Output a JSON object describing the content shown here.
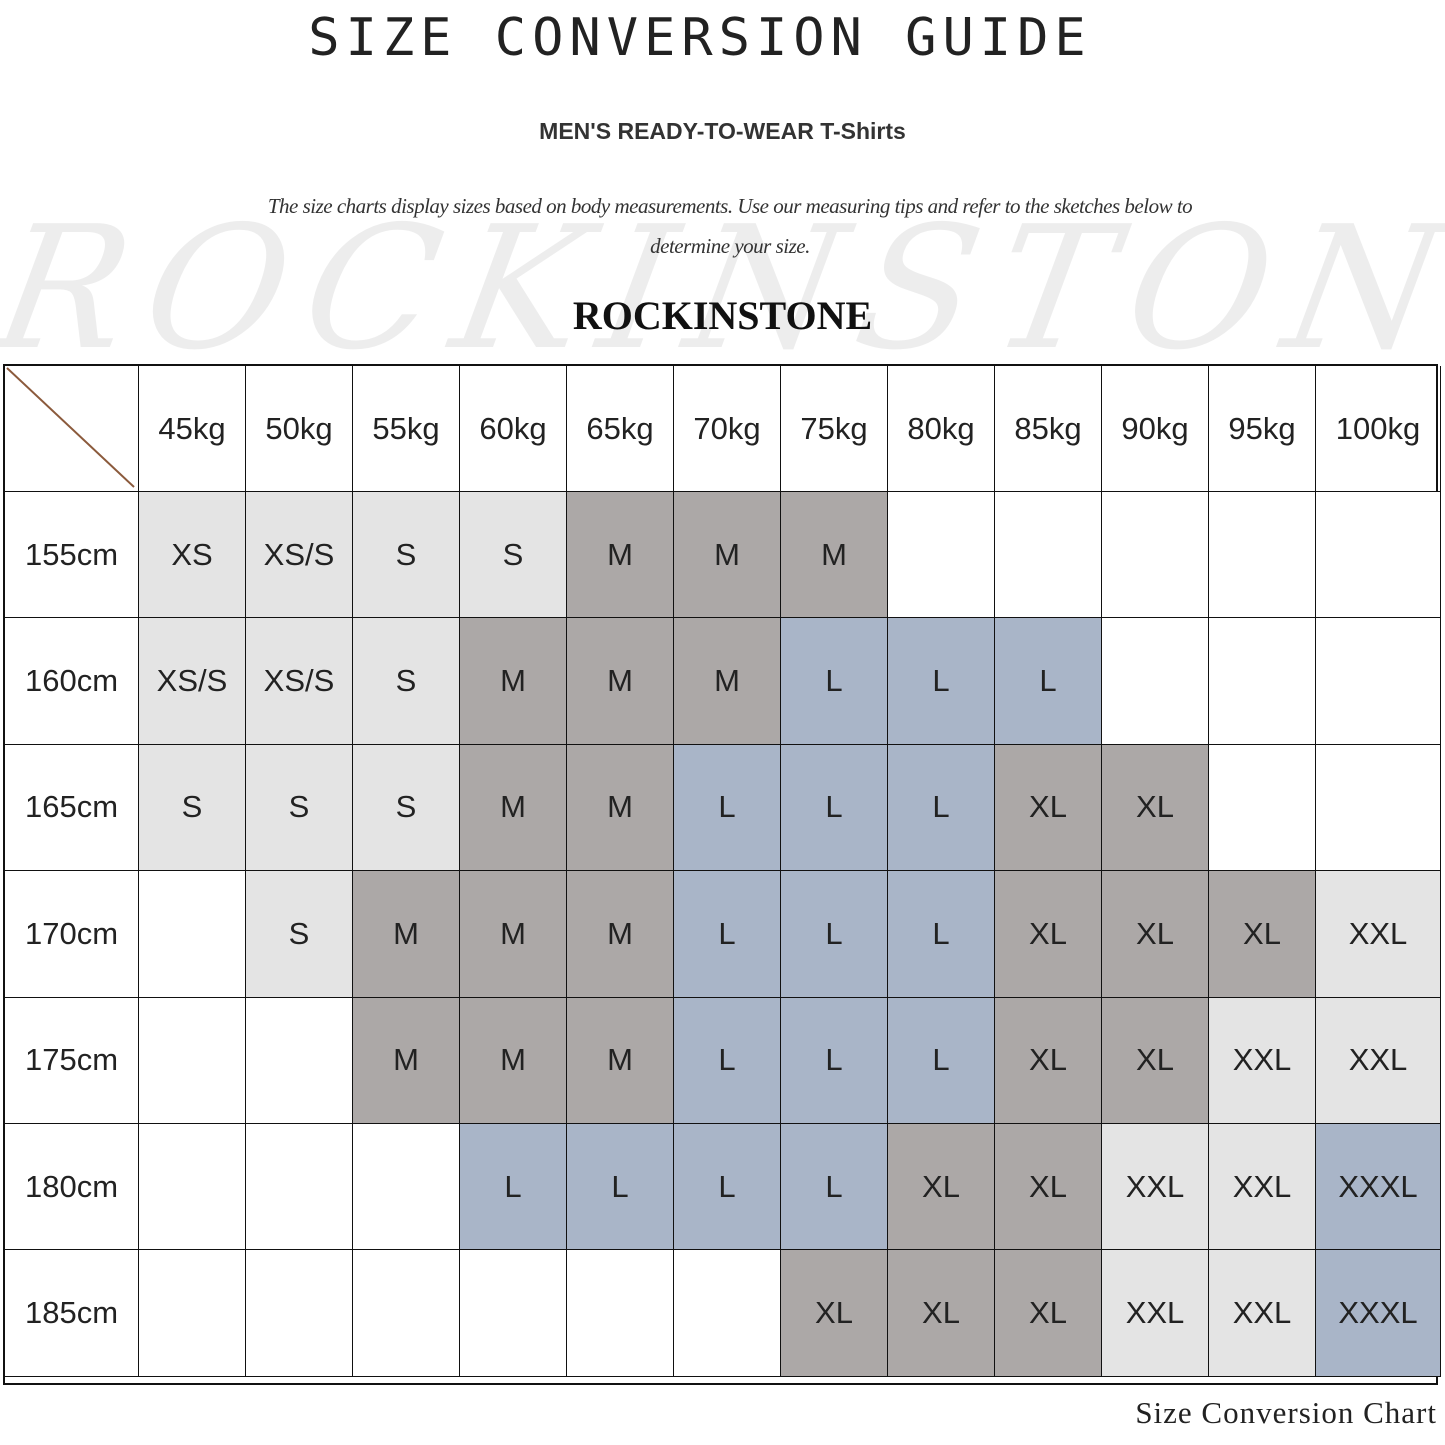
{
  "header": {
    "title": "SIZE CONVERSION GUIDE",
    "subtitle": "MEN'S READY-TO-WEAR T-Shirts",
    "description": "The size charts display sizes based on body measurements. Use our measuring tips and refer to the sketches below to determine your size.",
    "watermark": "ROCKINSTONE",
    "brand": "ROCKINSTONE"
  },
  "colors": {
    "light": "#e4e4e4",
    "dark": "#aca8a7",
    "blue": "#a9b5c8",
    "empty": "#ffffff",
    "diagonal": "#8b5a3c"
  },
  "size_color": {
    "XS": "light",
    "XS/S": "light",
    "S": "light",
    "XXL": "light",
    "M": "dark",
    "XL": "dark",
    "L": "blue",
    "XXXL": "blue"
  },
  "table": {
    "weights": [
      "45kg",
      "50kg",
      "55kg",
      "60kg",
      "65kg",
      "70kg",
      "75kg",
      "80kg",
      "85kg",
      "90kg",
      "95kg",
      "100kg"
    ],
    "rows": [
      {
        "height": "155cm",
        "sizes": [
          "XS",
          "XS/S",
          "S",
          "S",
          "M",
          "M",
          "M",
          "",
          "",
          "",
          "",
          ""
        ]
      },
      {
        "height": "160cm",
        "sizes": [
          "XS/S",
          "XS/S",
          "S",
          "M",
          "M",
          "M",
          "L",
          "L",
          "L",
          "",
          "",
          ""
        ]
      },
      {
        "height": "165cm",
        "sizes": [
          "S",
          "S",
          "S",
          "M",
          "M",
          "L",
          "L",
          "L",
          "XL",
          "XL",
          "",
          ""
        ]
      },
      {
        "height": "170cm",
        "sizes": [
          "",
          "S",
          "M",
          "M",
          "M",
          "L",
          "L",
          "L",
          "XL",
          "XL",
          "XL",
          "XXL"
        ]
      },
      {
        "height": "175cm",
        "sizes": [
          "",
          "",
          "M",
          "M",
          "M",
          "L",
          "L",
          "L",
          "XL",
          "XL",
          "XXL",
          "XXL"
        ]
      },
      {
        "height": "180cm",
        "sizes": [
          "",
          "",
          "",
          "L",
          "L",
          "L",
          "L",
          "XL",
          "XL",
          "XXL",
          "XXL",
          "XXXL"
        ]
      },
      {
        "height": "185cm",
        "sizes": [
          "",
          "",
          "",
          "",
          "",
          "",
          "XL",
          "XL",
          "XL",
          "XXL",
          "XXL",
          "XXXL"
        ]
      }
    ]
  },
  "footer": {
    "caption": "Size Conversion Chart"
  }
}
